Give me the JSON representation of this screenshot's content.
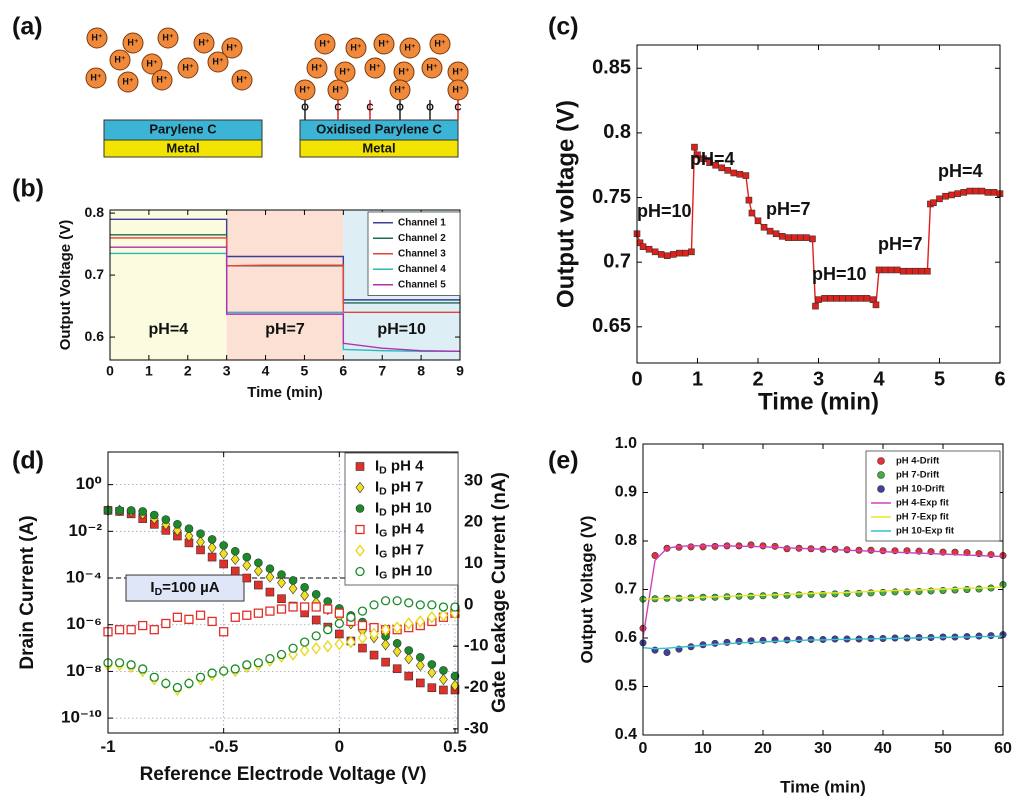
{
  "panel_a": {
    "label": "(a)",
    "ion": "H⁺",
    "left_layer": "Parylene C",
    "right_layer": "Oxidised Parylene C",
    "metal": "Metal",
    "groups": [
      "O",
      "C"
    ]
  },
  "chart_data": [
    {
      "type": "line",
      "label": "(b)",
      "xlabel": "Time (min)",
      "ylabel": "Output Voltage (V)",
      "x": [
        0,
        1,
        2,
        3,
        3,
        4,
        5,
        6,
        6,
        7,
        8,
        9
      ],
      "xlim": [
        0,
        9
      ],
      "xticks": [
        0,
        1,
        2,
        3,
        4,
        5,
        6,
        7,
        8,
        9
      ],
      "ylim": [
        0.563,
        0.805
      ],
      "yticks": [
        0.6,
        0.7,
        0.8
      ],
      "grid": false,
      "legend": "upper right",
      "regions": [
        {
          "label": "pH=4",
          "x": [
            0,
            3
          ],
          "color": "#fbfbe0"
        },
        {
          "label": "pH=7",
          "x": [
            3,
            6
          ],
          "color": "#fde0d4"
        },
        {
          "label": "pH=10",
          "x": [
            6,
            9
          ],
          "color": "#ddeff4"
        }
      ],
      "series": [
        {
          "name": "Channel 1",
          "color": "#3c3c9a",
          "values": [
            0.79,
            0.79,
            0.79,
            0.79,
            0.73,
            0.73,
            0.73,
            0.73,
            0.66,
            0.66,
            0.66,
            0.66
          ]
        },
        {
          "name": "Channel 2",
          "color": "#1a6e4a",
          "values": [
            0.765,
            0.765,
            0.765,
            0.765,
            0.715,
            0.715,
            0.715,
            0.715,
            0.655,
            0.655,
            0.655,
            0.655
          ]
        },
        {
          "name": "Channel 3",
          "color": "#e8403a",
          "values": [
            0.76,
            0.76,
            0.76,
            0.76,
            0.715,
            0.716,
            0.716,
            0.716,
            0.64,
            0.64,
            0.64,
            0.64
          ]
        },
        {
          "name": "Channel 4",
          "color": "#2ab8b8",
          "values": [
            0.735,
            0.735,
            0.735,
            0.735,
            0.64,
            0.64,
            0.64,
            0.64,
            0.58,
            0.578,
            0.577,
            0.577
          ]
        },
        {
          "name": "Channel 5",
          "color": "#b030b0",
          "values": [
            0.745,
            0.745,
            0.745,
            0.745,
            0.637,
            0.637,
            0.637,
            0.637,
            0.59,
            0.582,
            0.578,
            0.577
          ]
        }
      ]
    },
    {
      "type": "line",
      "label": "(c)",
      "xlabel": "Time (min)",
      "ylabel": "Output voltage (V)",
      "x": [
        0,
        0.05,
        0.1,
        0.2,
        0.3,
        0.4,
        0.5,
        0.6,
        0.7,
        0.8,
        0.9,
        0.95,
        1,
        1.1,
        1.2,
        1.3,
        1.4,
        1.5,
        1.6,
        1.7,
        1.8,
        1.85,
        1.9,
        2,
        2.1,
        2.2,
        2.3,
        2.4,
        2.5,
        2.6,
        2.7,
        2.8,
        2.9,
        2.95,
        3,
        3.1,
        3.2,
        3.3,
        3.4,
        3.5,
        3.6,
        3.7,
        3.8,
        3.9,
        3.95,
        4,
        4.1,
        4.2,
        4.3,
        4.4,
        4.5,
        4.6,
        4.7,
        4.8,
        4.85,
        4.9,
        5,
        5.1,
        5.2,
        5.3,
        5.4,
        5.5,
        5.6,
        5.7,
        5.8,
        5.9,
        6
      ],
      "xlim": [
        0,
        6
      ],
      "xticks": [
        0,
        1,
        2,
        3,
        4,
        5,
        6
      ],
      "ylim": [
        0.622,
        0.868
      ],
      "yticks": [
        0.65,
        0.7,
        0.75,
        0.8,
        0.85
      ],
      "grid": false,
      "annotations": [
        "pH=10",
        "pH=4",
        "pH=7",
        "pH=10",
        "pH=7",
        "pH=4"
      ],
      "series": [
        {
          "color": "#e0201a",
          "marker": "square",
          "values": [
            0.722,
            0.715,
            0.712,
            0.71,
            0.708,
            0.706,
            0.705,
            0.706,
            0.707,
            0.707,
            0.708,
            0.789,
            0.783,
            0.78,
            0.777,
            0.775,
            0.773,
            0.771,
            0.769,
            0.768,
            0.767,
            0.748,
            0.738,
            0.732,
            0.727,
            0.724,
            0.722,
            0.72,
            0.719,
            0.719,
            0.719,
            0.719,
            0.718,
            0.666,
            0.671,
            0.672,
            0.672,
            0.672,
            0.672,
            0.672,
            0.672,
            0.672,
            0.672,
            0.671,
            0.667,
            0.694,
            0.694,
            0.694,
            0.694,
            0.693,
            0.693,
            0.693,
            0.693,
            0.693,
            0.745,
            0.746,
            0.749,
            0.751,
            0.752,
            0.753,
            0.754,
            0.755,
            0.755,
            0.755,
            0.754,
            0.754,
            0.753
          ]
        }
      ]
    },
    {
      "type": "scatter",
      "label": "(d)",
      "xlabel": "Reference Electrode Voltage (V)",
      "ylabel": "Drain Current (A)",
      "y2label": "Gate Leakage Current (nA)",
      "ylabel_color": "#4c4ca0",
      "y2label_color": "#117a11",
      "x": [
        -1,
        -0.95,
        -0.9,
        -0.85,
        -0.8,
        -0.75,
        -0.7,
        -0.65,
        -0.6,
        -0.55,
        -0.5,
        -0.45,
        -0.4,
        -0.35,
        -0.3,
        -0.25,
        -0.2,
        -0.15,
        -0.1,
        -0.05,
        0,
        0.05,
        0.1,
        0.15,
        0.2,
        0.25,
        0.3,
        0.35,
        0.4,
        0.45,
        0.5
      ],
      "xlim": [
        -1,
        0.513
      ],
      "xticks": [
        -1,
        -0.5,
        0,
        0.5
      ],
      "log_y": true,
      "ylim": [
        2.3e-11,
        25
      ],
      "yticks": [
        {
          "value": 1e-10,
          "label": "10⁻¹⁰"
        },
        {
          "value": 1e-08,
          "label": "10⁻⁸"
        },
        {
          "value": 1e-06,
          "label": "10⁻⁶"
        },
        {
          "value": 0.0001,
          "label": "10⁻⁴"
        },
        {
          "value": 0.01,
          "label": "10⁻²"
        },
        {
          "value": 1,
          "label": "10⁰"
        }
      ],
      "y2lim": [
        -31,
        37
      ],
      "y2ticks": [
        -30,
        -20,
        -10,
        0,
        10,
        20,
        30
      ],
      "grid": true,
      "legend": "upper right",
      "hline": {
        "value": 0.0001,
        "label": "ID=100 µA"
      },
      "series": [
        {
          "name": "ID pH 4",
          "color": "#e0302a",
          "marker": "square",
          "line": false,
          "values": [
            0.079,
            0.071,
            0.056,
            0.035,
            0.02,
            0.011,
            0.0063,
            0.0032,
            0.0016,
            0.00079,
            0.0004,
            0.0002,
            0.0001,
            5e-05,
            2.5e-05,
            1.3e-05,
            6.3e-06,
            3.2e-06,
            1.6e-06,
            7.9e-07,
            4e-07,
            2e-07,
            1e-07,
            5e-08,
            2.5e-08,
            1.3e-08,
            6.3e-09,
            3.2e-09,
            2e-09,
            1.6e-09,
            1.6e-09
          ]
        },
        {
          "name": "ID pH 7",
          "color": "#f0e020",
          "marker": "diamond",
          "line": false,
          "values": [
            0.079,
            0.079,
            0.071,
            0.056,
            0.035,
            0.02,
            0.011,
            0.0063,
            0.0035,
            0.002,
            0.0011,
            0.00063,
            0.00035,
            0.0002,
            0.00011,
            6.3e-05,
            3.5e-05,
            1.8e-05,
            8.9e-06,
            4.5e-06,
            2.2e-06,
            1.1e-06,
            5.6e-07,
            2.8e-07,
            1.4e-07,
            7.1e-08,
            3.5e-08,
            1.8e-08,
            8.9e-09,
            4.5e-09,
            2.5e-09
          ]
        },
        {
          "name": "ID pH 10",
          "color": "#1a8a2a",
          "marker": "circle",
          "line": false,
          "values": [
            0.079,
            0.079,
            0.079,
            0.071,
            0.05,
            0.032,
            0.02,
            0.013,
            0.0079,
            0.0045,
            0.0025,
            0.0014,
            0.00079,
            0.00045,
            0.00025,
            0.00014,
            7.9e-05,
            4e-05,
            2e-05,
            1e-05,
            5e-06,
            2.5e-06,
            1.3e-06,
            6.3e-07,
            3.2e-07,
            1.6e-07,
            7.9e-08,
            4e-08,
            2e-08,
            1.1e-08,
            6.3e-09
          ]
        },
        {
          "name": "IG pH 4",
          "color": "#e0302a",
          "marker": "square",
          "filled": false,
          "line": false,
          "axis": "y2",
          "values": [
            -6.5,
            -6,
            -6,
            -5,
            -6,
            -4.5,
            -3,
            -3.5,
            -2.5,
            -4,
            -6.5,
            -3,
            -2.5,
            -2,
            -1.5,
            -1,
            -0.5,
            -0.5,
            -0.5,
            -1,
            -2,
            -4,
            -5,
            -5.5,
            -6,
            -6,
            -5.5,
            -5,
            -4,
            -3,
            -2
          ]
        },
        {
          "name": "IG pH 7",
          "color": "#e8d810",
          "marker": "diamond",
          "filled": false,
          "line": false,
          "axis": "y2",
          "values": [
            -14.5,
            -14.5,
            -15,
            -16,
            -18,
            -19,
            -20.5,
            -19,
            -18,
            -17,
            -16,
            -16,
            -15,
            -14.5,
            -13.5,
            -12.5,
            -12,
            -11,
            -10.5,
            -10,
            -9.5,
            -9,
            -8,
            -7,
            -6,
            -5.5,
            -4.5,
            -4,
            -3,
            -2.5,
            -2
          ]
        },
        {
          "name": "IG pH 10",
          "color": "#1a8a2a",
          "marker": "circle",
          "filled": false,
          "line": false,
          "axis": "y2",
          "values": [
            -14,
            -14,
            -14.5,
            -15.5,
            -17.5,
            -19,
            -20,
            -19,
            -17.5,
            -16.5,
            -16,
            -15.5,
            -14.5,
            -14,
            -13,
            -12,
            -10.5,
            -9,
            -7.5,
            -6,
            -4.5,
            -3,
            -1.5,
            0,
            1,
            1,
            0.5,
            0,
            0,
            -0.5,
            -0.5
          ]
        }
      ]
    },
    {
      "type": "scatter",
      "label": "(e)",
      "xlabel": "Time (min)",
      "ylabel": "Output Voltage (V)",
      "x": [
        0,
        2,
        4,
        6,
        8,
        10,
        12,
        14,
        16,
        18,
        20,
        22,
        24,
        26,
        28,
        30,
        32,
        34,
        36,
        38,
        40,
        42,
        44,
        46,
        48,
        50,
        52,
        54,
        56,
        58,
        60
      ],
      "xlim": [
        0,
        60
      ],
      "xticks": [
        0,
        10,
        20,
        30,
        40,
        50,
        60
      ],
      "ylim": [
        0.4,
        1
      ],
      "yticks": [
        0.4,
        0.5,
        0.6,
        0.7,
        0.8,
        0.9,
        {
          "value": 1,
          "label": "1.0"
        }
      ],
      "grid": false,
      "legend": "upper right",
      "series": [
        {
          "name": "pH 4-Drift",
          "color": "#e8303a",
          "marker": "circle",
          "line": false,
          "values": [
            0.62,
            0.77,
            0.785,
            0.787,
            0.788,
            0.788,
            0.789,
            0.79,
            0.79,
            0.792,
            0.79,
            0.789,
            0.784,
            0.785,
            0.784,
            0.783,
            0.783,
            0.782,
            0.781,
            0.781,
            0.78,
            0.78,
            0.78,
            0.779,
            0.778,
            0.777,
            0.777,
            0.776,
            0.774,
            0.772,
            0.77
          ]
        },
        {
          "name": "pH 7-Drift",
          "color": "#40b040",
          "marker": "circle",
          "line": false,
          "values": [
            0.68,
            0.681,
            0.682,
            0.682,
            0.683,
            0.684,
            0.684,
            0.685,
            0.686,
            0.686,
            0.687,
            0.688,
            0.688,
            0.689,
            0.69,
            0.69,
            0.691,
            0.692,
            0.692,
            0.693,
            0.694,
            0.695,
            0.695,
            0.696,
            0.697,
            0.698,
            0.699,
            0.7,
            0.701,
            0.703,
            0.71
          ]
        },
        {
          "name": "pH 10-Drift",
          "color": "#4040a0",
          "marker": "circle",
          "line": false,
          "values": [
            0.59,
            0.575,
            0.57,
            0.577,
            0.582,
            0.586,
            0.589,
            0.591,
            0.593,
            0.594,
            0.595,
            0.596,
            0.596,
            0.597,
            0.597,
            0.597,
            0.598,
            0.598,
            0.598,
            0.599,
            0.599,
            0.6,
            0.6,
            0.601,
            0.601,
            0.602,
            0.602,
            0.603,
            0.604,
            0.605,
            0.607
          ]
        },
        {
          "name": "pH 4-Exp fit",
          "color": "#d040c0",
          "values": [
            0.6,
            0.76,
            0.785,
            0.789,
            0.79,
            0.79,
            0.79,
            0.79,
            0.789,
            0.789,
            0.788,
            0.787,
            0.786,
            0.785,
            0.784,
            0.783,
            0.782,
            0.781,
            0.78,
            0.779,
            0.778,
            0.777,
            0.776,
            0.775,
            0.774,
            0.773,
            0.772,
            0.771,
            0.77,
            0.769,
            0.768
          ]
        },
        {
          "name": "pH 7-Exp fit",
          "color": "#e8e820",
          "values": [
            0.68,
            0.681,
            0.682,
            0.683,
            0.683,
            0.684,
            0.685,
            0.686,
            0.687,
            0.688,
            0.688,
            0.689,
            0.69,
            0.691,
            0.692,
            0.693,
            0.693,
            0.694,
            0.695,
            0.696,
            0.697,
            0.698,
            0.698,
            0.699,
            0.7,
            0.701,
            0.702,
            0.703,
            0.703,
            0.704,
            0.705
          ]
        },
        {
          "name": "pH 10-Exp fit",
          "color": "#30c0d0",
          "values": [
            0.58,
            0.578,
            0.579,
            0.581,
            0.583,
            0.585,
            0.587,
            0.588,
            0.59,
            0.591,
            0.592,
            0.593,
            0.594,
            0.595,
            0.596,
            0.596,
            0.597,
            0.597,
            0.598,
            0.598,
            0.599,
            0.599,
            0.6,
            0.6,
            0.601,
            0.601,
            0.602,
            0.602,
            0.603,
            0.603,
            0.604
          ]
        }
      ]
    }
  ]
}
